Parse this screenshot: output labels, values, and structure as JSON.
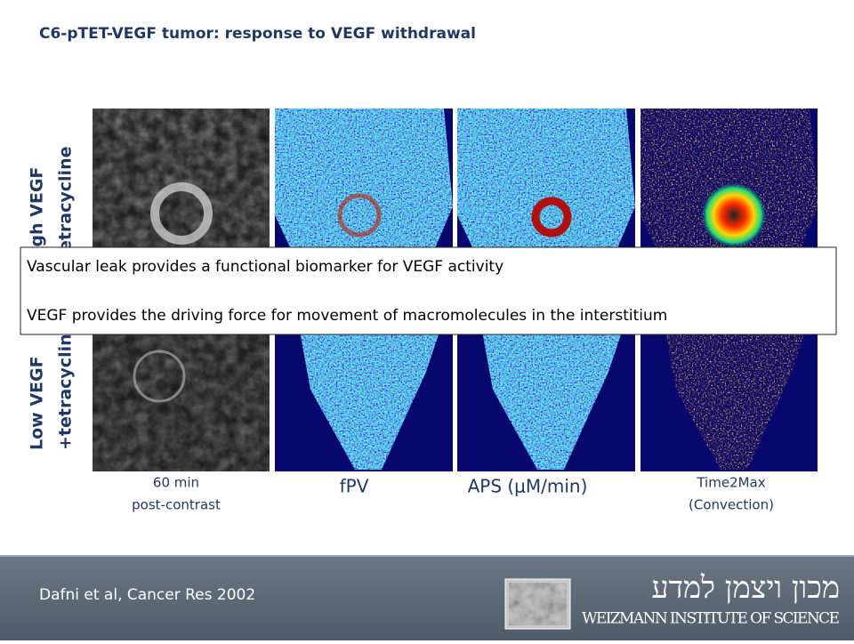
{
  "header": {
    "title": "C6-pTET-VEGF tumor: response to VEGF withdrawal"
  },
  "rows": [
    {
      "line1": "High VEGF",
      "line2": "-tetracycline"
    },
    {
      "line1": "Low VEGF",
      "line2": "+tetracycline"
    }
  ],
  "columns": [
    {
      "lines": [
        "60 min",
        "post-contrast"
      ]
    },
    {
      "lines": [
        "fPV"
      ]
    },
    {
      "lines": [
        "APS (μM/min)"
      ]
    },
    {
      "lines": [
        "Time2Max",
        "(Convection)"
      ]
    }
  ],
  "callout": {
    "lines": [
      "Vascular leak provides a functional biomarker for VEGF activity",
      "VEGF provides the driving force for movement of macromolecules in the interstitium"
    ]
  },
  "footer": {
    "citation": "Dafni et al, Cancer Res 2002",
    "logo_hebrew": "מכון ויצמן למדע",
    "logo_english": "WEIZMANN INSTITUTE OF SCIENCE"
  }
}
